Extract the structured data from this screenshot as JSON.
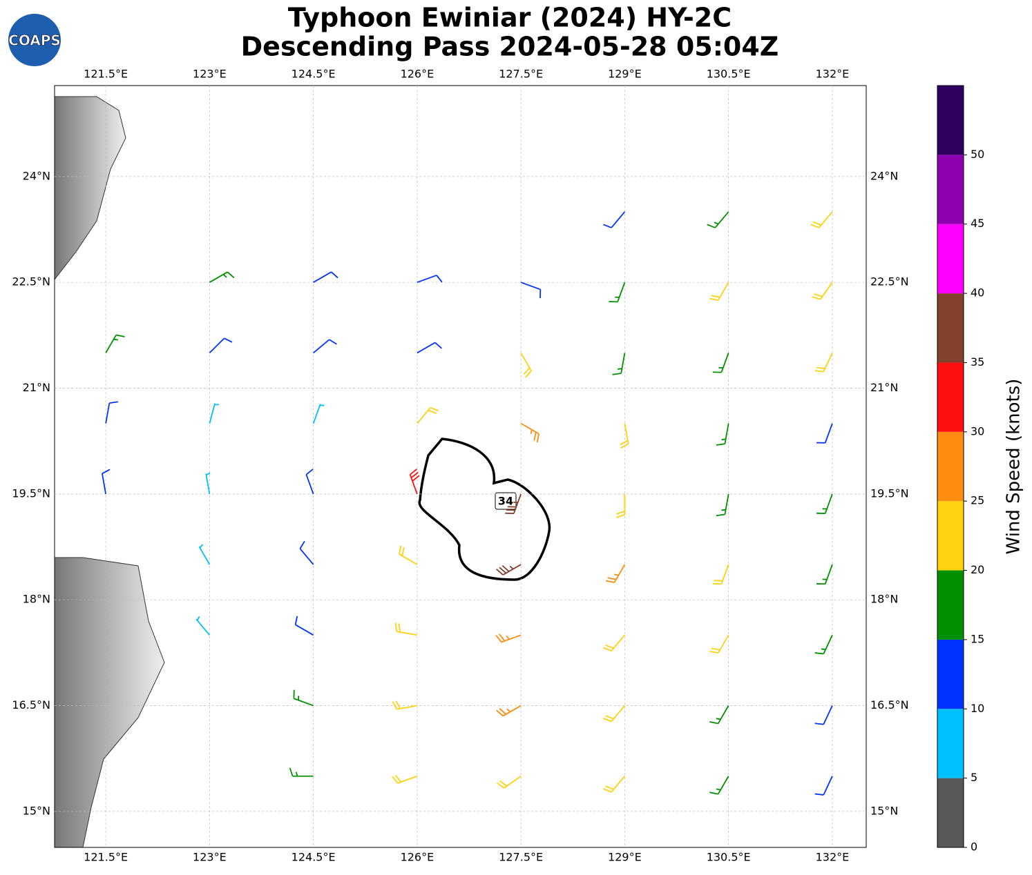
{
  "logo_text": "COAPS",
  "chart_data": {
    "type": "barbs",
    "title": "Typhoon Ewiniar (2024) HY-2C",
    "subtitle": "Descending Pass 2024-05-28 05:04Z",
    "xlim": [
      120.76,
      132.49
    ],
    "ylim": [
      14.49,
      25.29
    ],
    "xticks": [
      {
        "value": 121.5,
        "label": "121.5°E"
      },
      {
        "value": 123,
        "label": "123°E"
      },
      {
        "value": 124.5,
        "label": "124.5°E"
      },
      {
        "value": 126,
        "label": "126°E"
      },
      {
        "value": 127.5,
        "label": "127.5°E"
      },
      {
        "value": 129,
        "label": "129°E"
      },
      {
        "value": 130.5,
        "label": "130.5°E"
      },
      {
        "value": 132,
        "label": "132°E"
      }
    ],
    "yticks": [
      {
        "value": 15,
        "label": "15°N"
      },
      {
        "value": 16.5,
        "label": "16.5°N"
      },
      {
        "value": 18,
        "label": "18°N"
      },
      {
        "value": 19.5,
        "label": "19.5°N"
      },
      {
        "value": 21,
        "label": "21°N"
      },
      {
        "value": 22.5,
        "label": "22.5°N"
      },
      {
        "value": 24,
        "label": "24°N"
      }
    ],
    "grid": true,
    "contour_level": 34,
    "barbs": {
      "lats": [
        23.5,
        22.5,
        21.5,
        20.5,
        19.5,
        18.5,
        17.5,
        16.5,
        15.5
      ],
      "lons": [
        121.5,
        123,
        124.5,
        126,
        127.5,
        129,
        130.5,
        132
      ],
      "speed": [
        [
          null,
          null,
          null,
          null,
          null,
          12,
          17,
          22
        ],
        [
          null,
          16,
          12,
          12,
          12,
          17,
          20,
          22
        ],
        [
          17,
          12,
          12,
          12,
          22,
          18,
          18,
          20
        ],
        [
          13,
          8,
          8,
          22,
          28,
          21,
          18,
          14
        ],
        [
          13,
          8,
          10,
          32,
          38,
          24,
          18,
          17
        ],
        [
          null,
          8,
          13,
          24,
          36,
          26,
          21,
          19
        ],
        [
          null,
          8,
          13,
          24,
          28,
          24,
          21,
          18
        ],
        [
          null,
          null,
          17,
          22,
          26,
          22,
          19,
          14
        ],
        [
          null,
          null,
          17,
          22,
          24,
          22,
          17,
          12
        ]
      ],
      "direction": [
        [
          null,
          null,
          null,
          null,
          null,
          220,
          220,
          220
        ],
        [
          null,
          60,
          60,
          70,
          110,
          200,
          210,
          215
        ],
        [
          30,
          45,
          50,
          60,
          150,
          190,
          200,
          205
        ],
        [
          10,
          15,
          20,
          40,
          120,
          170,
          190,
          200
        ],
        [
          350,
          350,
          340,
          340,
          200,
          180,
          190,
          200
        ],
        [
          null,
          330,
          320,
          300,
          240,
          210,
          200,
          200
        ],
        [
          null,
          320,
          300,
          280,
          250,
          220,
          210,
          205
        ],
        [
          null,
          null,
          290,
          260,
          240,
          220,
          210,
          205
        ],
        [
          null,
          null,
          270,
          250,
          235,
          220,
          210,
          205
        ]
      ]
    },
    "colorbar": {
      "label": "Wind Speed (knots)",
      "lim": [
        0,
        55
      ],
      "ticks": [
        0,
        5,
        10,
        15,
        20,
        25,
        30,
        35,
        40,
        45,
        50
      ],
      "bounds": [
        0,
        5,
        10,
        15,
        20,
        25,
        30,
        35,
        40,
        45,
        50,
        55
      ],
      "colors": [
        "#595959",
        "#00bfff",
        "#0033ff",
        "#009000",
        "#ffd10f",
        "#ff8c0f",
        "#ff1010",
        "#83402c",
        "#ff00ff",
        "#8f00b0",
        "#2f0060"
      ]
    }
  }
}
